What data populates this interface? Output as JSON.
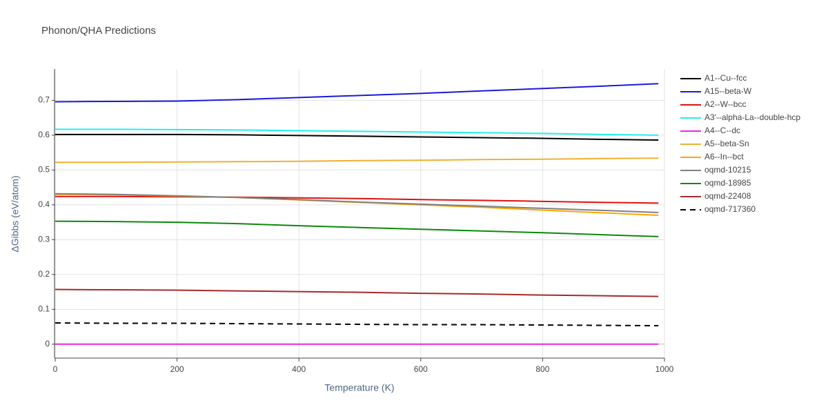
{
  "chart_data": {
    "type": "line",
    "title": "Phonon/QHA Predictions",
    "x_label": "Temperature (K)",
    "y_label": "ΔGibbs (eV/atom)",
    "x": [
      0,
      100,
      200,
      300,
      400,
      500,
      600,
      700,
      800,
      900,
      990
    ],
    "series": [
      {
        "name": "A1--Cu--fcc",
        "color": "#000000",
        "values": [
          0.602,
          0.602,
          0.602,
          0.601,
          0.599,
          0.597,
          0.595,
          0.593,
          0.591,
          0.588,
          0.586
        ]
      },
      {
        "name": "A15--beta-W",
        "color": "#1a1ad6",
        "values": [
          0.696,
          0.697,
          0.698,
          0.702,
          0.708,
          0.714,
          0.72,
          0.727,
          0.734,
          0.741,
          0.748
        ]
      },
      {
        "name": "A2--W--bcc",
        "color": "#e01010",
        "values": [
          0.424,
          0.424,
          0.423,
          0.422,
          0.42,
          0.418,
          0.415,
          0.413,
          0.41,
          0.407,
          0.405
        ]
      },
      {
        "name": "A3'--alpha-La--double-hcp",
        "color": "#22eeee",
        "values": [
          0.617,
          0.617,
          0.616,
          0.615,
          0.613,
          0.611,
          0.609,
          0.607,
          0.605,
          0.602,
          0.6
        ]
      },
      {
        "name": "A4--C--dc",
        "color": "#ee22ee",
        "values": [
          0,
          0,
          0,
          0,
          0,
          0,
          0,
          0,
          0,
          0,
          0
        ]
      },
      {
        "name": "A5--beta-Sn",
        "color": "#f0b030",
        "values": [
          0.522,
          0.522,
          0.523,
          0.524,
          0.525,
          0.527,
          0.528,
          0.53,
          0.531,
          0.533,
          0.534
        ]
      },
      {
        "name": "A6--In--bct",
        "color": "#ffa500",
        "values": [
          0.43,
          0.429,
          0.425,
          0.421,
          0.414,
          0.407,
          0.4,
          0.393,
          0.385,
          0.377,
          0.37
        ]
      },
      {
        "name": "oqmd-10215",
        "color": "#808080",
        "values": [
          0.432,
          0.43,
          0.426,
          0.421,
          0.415,
          0.408,
          0.402,
          0.396,
          0.39,
          0.384,
          0.378
        ]
      },
      {
        "name": "oqmd-18985",
        "color": "#0a8a0a",
        "values": [
          0.353,
          0.352,
          0.35,
          0.346,
          0.34,
          0.335,
          0.33,
          0.325,
          0.32,
          0.314,
          0.309
        ]
      },
      {
        "name": "oqmd-22408",
        "color": "#a52a2a",
        "values": [
          0.157,
          0.156,
          0.155,
          0.153,
          0.151,
          0.149,
          0.146,
          0.144,
          0.141,
          0.139,
          0.137
        ]
      },
      {
        "name": "oqmd-717360",
        "color": "#000000",
        "dash": "dash",
        "values": [
          0.061,
          0.06,
          0.06,
          0.059,
          0.058,
          0.057,
          0.056,
          0.056,
          0.055,
          0.054,
          0.053
        ]
      }
    ],
    "xlim": [
      0,
      1000
    ],
    "xticks": [
      0,
      200,
      400,
      600,
      800,
      1000
    ],
    "ylim": [
      -0.04,
      0.79
    ],
    "yticks": [
      0,
      0.1,
      0.2,
      0.3,
      0.4,
      0.5,
      0.6,
      0.7
    ],
    "grid": true,
    "legend": "right"
  }
}
